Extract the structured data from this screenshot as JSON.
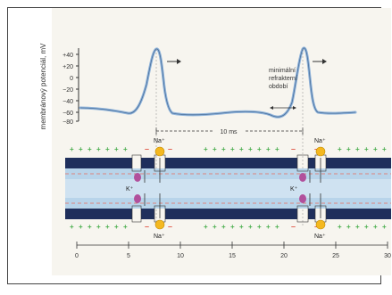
{
  "figure": {
    "y_axis_label": "membránový potenciál, mV",
    "y_ticks": [
      "+40",
      "+20",
      "0",
      "−20",
      "−40",
      "−60",
      "−80"
    ],
    "annotation": [
      "minimální",
      "refrakterní",
      "období"
    ],
    "span_label": "10 ms",
    "ion_labels": {
      "na_top_left": "Na⁺",
      "na_top_right": "Na⁺",
      "na_bottom_left": "Na⁺",
      "na_bottom_right": "Na⁺",
      "k_left": "K⁺",
      "k_right": "K⁺"
    },
    "x_ticks": [
      "0",
      "5",
      "10",
      "15",
      "20",
      "25",
      "30"
    ]
  },
  "colors": {
    "trace": "#8fb3da",
    "membrane": "#1f2f5c",
    "axon_band": "#b8d4ea",
    "charge": "#4caf50",
    "na_ion": "#f4b820",
    "k_ion": "#b1509c",
    "dashed_line": "#e66a5a"
  }
}
